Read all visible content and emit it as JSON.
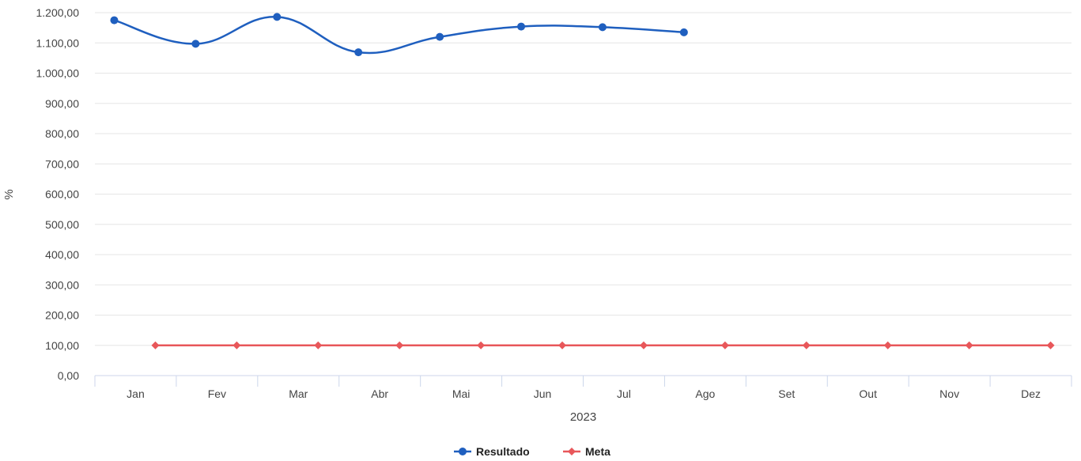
{
  "chart_data": {
    "type": "line",
    "categories": [
      "Jan",
      "Fev",
      "Mar",
      "Abr",
      "Mai",
      "Jun",
      "Jul",
      "Ago",
      "Set",
      "Out",
      "Nov",
      "Dez"
    ],
    "xlabel": "2023",
    "ylabel": "%",
    "ylim": [
      0,
      1200
    ],
    "y_ticks": [
      "0,00",
      "100,00",
      "200,00",
      "300,00",
      "400,00",
      "500,00",
      "600,00",
      "700,00",
      "800,00",
      "900,00",
      "1.000,00",
      "1.100,00",
      "1.200,00"
    ],
    "grid": true,
    "legend_position": "bottom-center",
    "series": [
      {
        "name": "Resultado",
        "color": "#1f5fbf",
        "marker": "circle",
        "values": [
          1175,
          1097,
          1186,
          1069,
          1120,
          1154,
          1152,
          1135,
          null,
          null,
          null,
          null
        ]
      },
      {
        "name": "Meta",
        "color": "#e8575a",
        "marker": "diamond",
        "values": [
          100,
          100,
          100,
          100,
          100,
          100,
          100,
          100,
          100,
          100,
          100,
          100
        ]
      }
    ]
  }
}
